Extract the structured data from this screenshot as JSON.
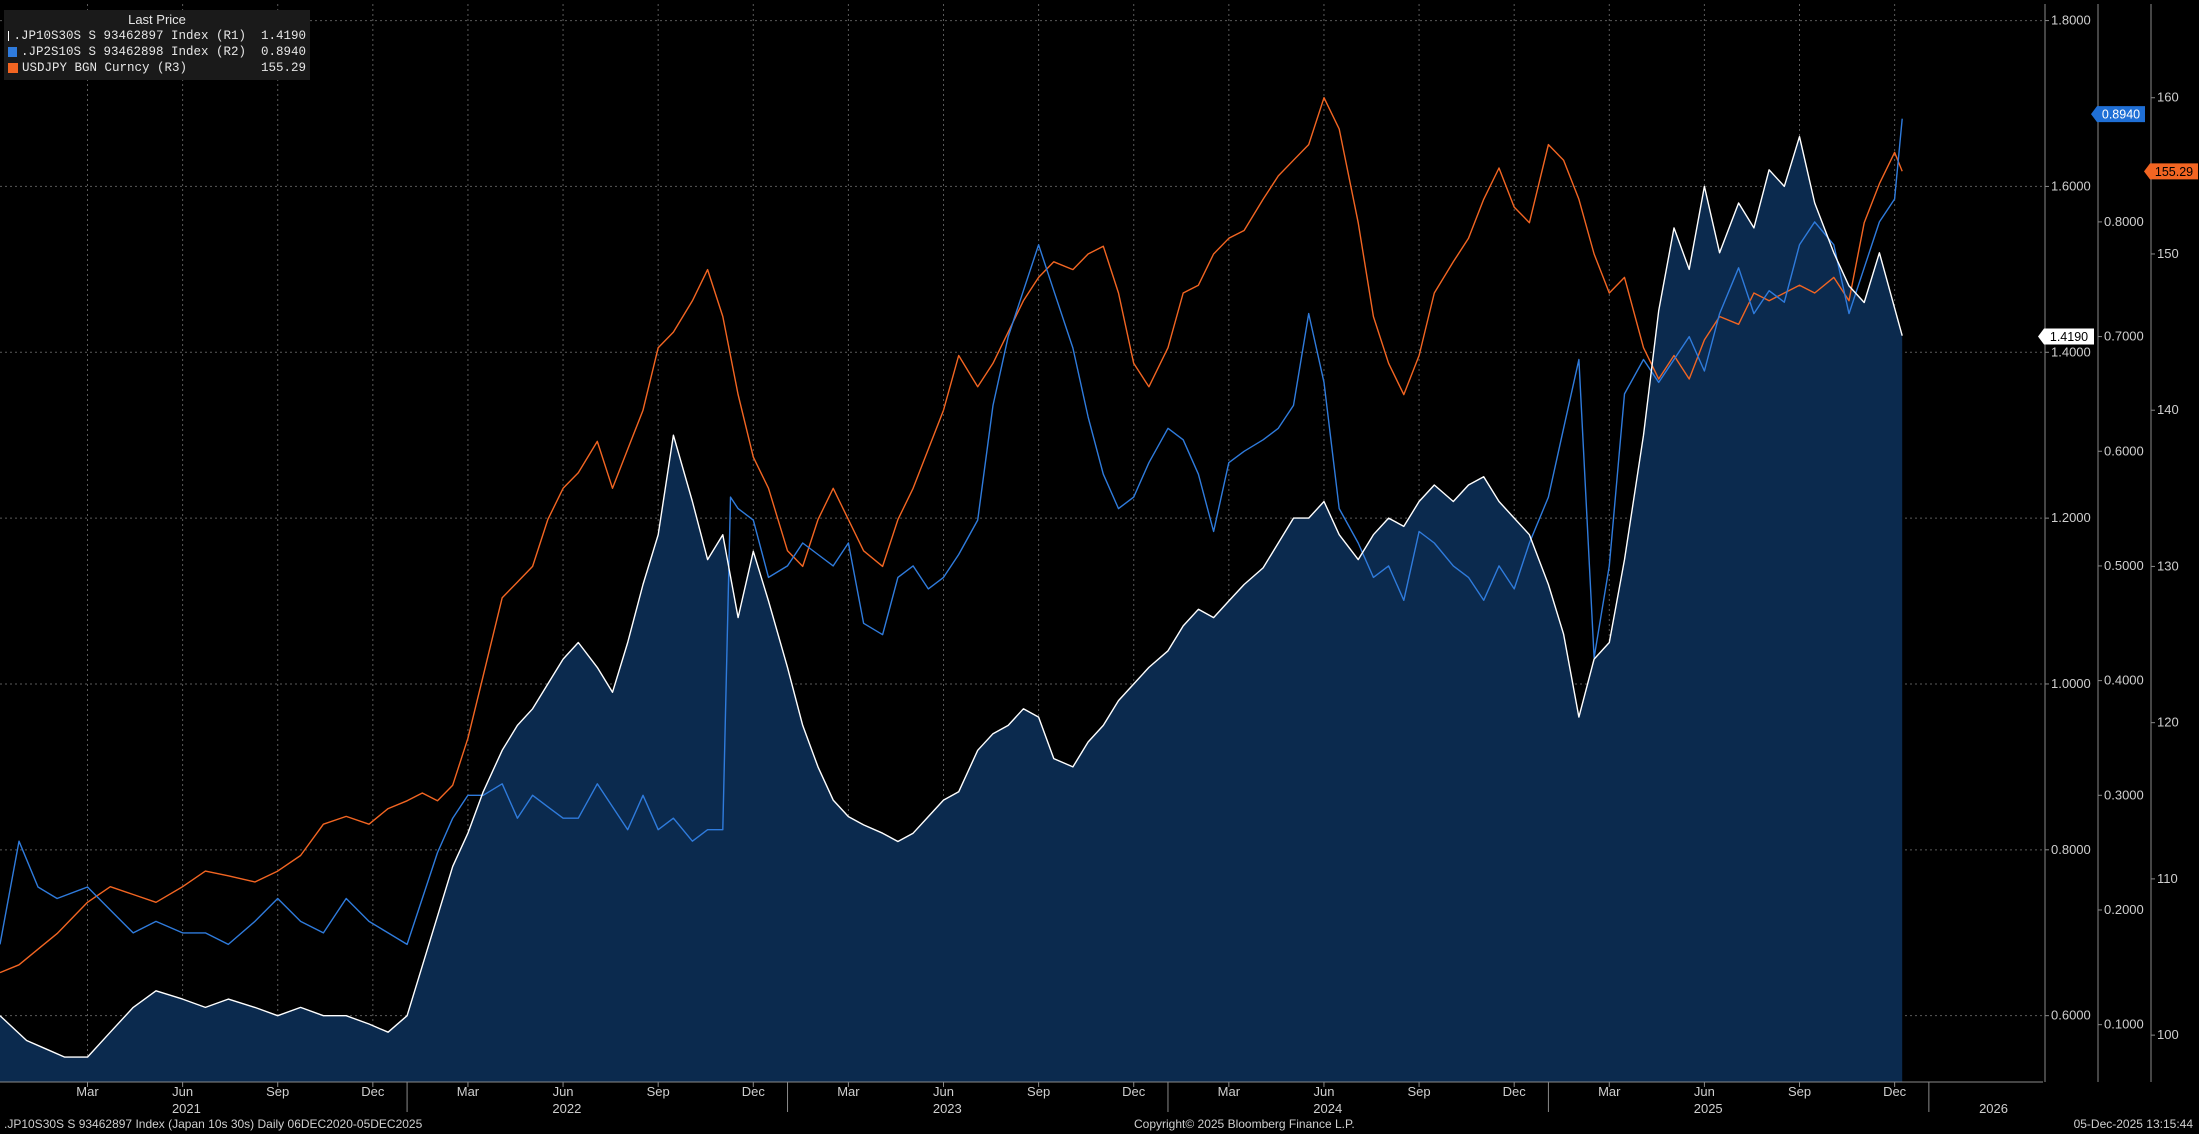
{
  "legend": {
    "title": "Last Price",
    "items": [
      {
        "label": ".JP10S30S S 93462897 Index  (R1)",
        "value": "1.4190",
        "color": "#ffffff"
      },
      {
        "label": ".JP2S10S S 93462898 Index  (R2)",
        "value": "0.8940",
        "color": "#2f7bdc"
      },
      {
        "label": "USDJPY BGN Curncy  (R3)",
        "value": "155.29",
        "color": "#f26522"
      }
    ]
  },
  "footer": {
    "left": ".JP10S30S S 93462897 Index (Japan 10s 30s) Daily 06DEC2020-05DEC2025",
    "center": "Copyright© 2025 Bloomberg Finance L.P.",
    "right": "05-Dec-2025 13:15:44"
  },
  "colors": {
    "background": "#000000",
    "area_fill": "#0b2a4e",
    "r1_line": "#ffffff",
    "r2_line": "#2f7bdc",
    "r3_line": "#f26522",
    "grid": "#5a5a5a"
  },
  "chart_data": {
    "type": "line",
    "title": "Last Price",
    "x_range": [
      2020.93,
      2026.3
    ],
    "month_ticks": [
      {
        "label": "Mar",
        "t": 2021.16
      },
      {
        "label": "Jun",
        "t": 2021.41
      },
      {
        "label": "Sep",
        "t": 2021.66
      },
      {
        "label": "Dec",
        "t": 2021.91
      },
      {
        "label": "Mar",
        "t": 2022.16
      },
      {
        "label": "Jun",
        "t": 2022.41
      },
      {
        "label": "Sep",
        "t": 2022.66
      },
      {
        "label": "Dec",
        "t": 2022.91
      },
      {
        "label": "Mar",
        "t": 2023.16
      },
      {
        "label": "Jun",
        "t": 2023.41
      },
      {
        "label": "Sep",
        "t": 2023.66
      },
      {
        "label": "Dec",
        "t": 2023.91
      },
      {
        "label": "Mar",
        "t": 2024.16
      },
      {
        "label": "Jun",
        "t": 2024.41
      },
      {
        "label": "Sep",
        "t": 2024.66
      },
      {
        "label": "Dec",
        "t": 2024.91
      },
      {
        "label": "Mar",
        "t": 2025.16
      },
      {
        "label": "Jun",
        "t": 2025.41
      },
      {
        "label": "Sep",
        "t": 2025.66
      },
      {
        "label": "Dec",
        "t": 2025.91
      }
    ],
    "year_labels": [
      {
        "label": "2021",
        "t": 2021.42
      },
      {
        "label": "2022",
        "t": 2022.42
      },
      {
        "label": "2023",
        "t": 2023.42
      },
      {
        "label": "2024",
        "t": 2024.42
      },
      {
        "label": "2025",
        "t": 2025.42
      },
      {
        "label": "2026",
        "t": 2026.17
      }
    ],
    "year_boundaries": [
      2022.0,
      2023.0,
      2024.0,
      2025.0,
      2026.0
    ],
    "axes": {
      "R1": {
        "min": 0.52,
        "max": 1.82,
        "ticks": [
          "1.8000",
          "1.6000",
          "1.4000",
          "1.2000",
          "1.0000",
          "0.8000",
          "0.6000"
        ],
        "tick_values": [
          1.8,
          1.6,
          1.4,
          1.2,
          1.0,
          0.8,
          0.6
        ]
      },
      "R2": {
        "min": 0.05,
        "max": 0.99,
        "ticks": [
          "0.8000",
          "0.7000",
          "0.6000",
          "0.5000",
          "0.4000",
          "0.3000",
          "0.2000",
          "0.1000"
        ],
        "tick_values": [
          0.8,
          0.7,
          0.6,
          0.5,
          0.4,
          0.3,
          0.2,
          0.1
        ]
      },
      "R3": {
        "min": 97.0,
        "max": 166.0,
        "ticks": [
          "160",
          "150",
          "140",
          "130",
          "120",
          "110",
          "100"
        ],
        "tick_values": [
          160,
          150,
          140,
          130,
          120,
          110,
          100
        ]
      }
    },
    "last_value_labels": [
      {
        "series": "R2",
        "text": "0.8940",
        "value": 0.894
      },
      {
        "series": "R3",
        "text": "155.29",
        "value": 155.29
      },
      {
        "series": "R1",
        "text": "1.4190",
        "value": 1.419
      }
    ],
    "series": [
      {
        "name": ".JP10S30S S 93462897 Index",
        "axis": "R1",
        "area": true,
        "x": [
          2020.93,
          2021.0,
          2021.05,
          2021.1,
          2021.16,
          2021.22,
          2021.28,
          2021.34,
          2021.41,
          2021.47,
          2021.53,
          2021.6,
          2021.66,
          2021.72,
          2021.78,
          2021.84,
          2021.9,
          2021.95,
          2022.0,
          2022.04,
          2022.08,
          2022.12,
          2022.16,
          2022.2,
          2022.25,
          2022.29,
          2022.33,
          2022.37,
          2022.41,
          2022.45,
          2022.5,
          2022.54,
          2022.58,
          2022.62,
          2022.66,
          2022.7,
          2022.75,
          2022.79,
          2022.83,
          2022.87,
          2022.91,
          2022.95,
          2023.0,
          2023.04,
          2023.08,
          2023.12,
          2023.16,
          2023.2,
          2023.25,
          2023.29,
          2023.33,
          2023.37,
          2023.41,
          2023.45,
          2023.5,
          2023.54,
          2023.58,
          2023.62,
          2023.66,
          2023.7,
          2023.75,
          2023.79,
          2023.83,
          2023.87,
          2023.91,
          2023.95,
          2024.0,
          2024.04,
          2024.08,
          2024.12,
          2024.16,
          2024.2,
          2024.25,
          2024.29,
          2024.33,
          2024.37,
          2024.41,
          2024.45,
          2024.5,
          2024.54,
          2024.58,
          2024.62,
          2024.66,
          2024.7,
          2024.75,
          2024.79,
          2024.83,
          2024.87,
          2024.91,
          2024.95,
          2025.0,
          2025.04,
          2025.08,
          2025.12,
          2025.16,
          2025.2,
          2025.25,
          2025.29,
          2025.33,
          2025.37,
          2025.41,
          2025.45,
          2025.5,
          2025.54,
          2025.58,
          2025.62,
          2025.66,
          2025.7,
          2025.75,
          2025.79,
          2025.83,
          2025.87,
          2025.93
        ],
        "values": [
          0.6,
          0.57,
          0.56,
          0.55,
          0.55,
          0.58,
          0.61,
          0.63,
          0.62,
          0.61,
          0.62,
          0.61,
          0.6,
          0.61,
          0.6,
          0.6,
          0.59,
          0.58,
          0.6,
          0.66,
          0.72,
          0.78,
          0.82,
          0.87,
          0.92,
          0.95,
          0.97,
          1.0,
          1.03,
          1.05,
          1.02,
          0.99,
          1.05,
          1.12,
          1.18,
          1.3,
          1.22,
          1.15,
          1.18,
          1.08,
          1.16,
          1.1,
          1.02,
          0.95,
          0.9,
          0.86,
          0.84,
          0.83,
          0.82,
          0.81,
          0.82,
          0.84,
          0.86,
          0.87,
          0.92,
          0.94,
          0.95,
          0.97,
          0.96,
          0.91,
          0.9,
          0.93,
          0.95,
          0.98,
          1.0,
          1.02,
          1.04,
          1.07,
          1.09,
          1.08,
          1.1,
          1.12,
          1.14,
          1.17,
          1.2,
          1.2,
          1.22,
          1.18,
          1.15,
          1.18,
          1.2,
          1.19,
          1.22,
          1.24,
          1.22,
          1.24,
          1.25,
          1.22,
          1.2,
          1.18,
          1.12,
          1.06,
          0.96,
          1.03,
          1.05,
          1.15,
          1.3,
          1.45,
          1.55,
          1.5,
          1.6,
          1.52,
          1.58,
          1.55,
          1.62,
          1.6,
          1.66,
          1.58,
          1.52,
          1.48,
          1.46,
          1.52,
          1.42
        ]
      },
      {
        "name": ".JP2S10S S 93462898 Index",
        "axis": "R2",
        "area": false,
        "x": [
          2020.93,
          2020.98,
          2021.03,
          2021.08,
          2021.16,
          2021.22,
          2021.28,
          2021.34,
          2021.41,
          2021.47,
          2021.53,
          2021.6,
          2021.66,
          2021.72,
          2021.78,
          2021.84,
          2021.9,
          2021.95,
          2022.0,
          2022.04,
          2022.08,
          2022.12,
          2022.16,
          2022.2,
          2022.25,
          2022.29,
          2022.33,
          2022.37,
          2022.41,
          2022.45,
          2022.5,
          2022.54,
          2022.58,
          2022.62,
          2022.66,
          2022.7,
          2022.75,
          2022.79,
          2022.83,
          2022.85,
          2022.87,
          2022.91,
          2022.95,
          2023.0,
          2023.04,
          2023.08,
          2023.12,
          2023.16,
          2023.2,
          2023.25,
          2023.29,
          2023.33,
          2023.37,
          2023.41,
          2023.45,
          2023.5,
          2023.54,
          2023.58,
          2023.62,
          2023.66,
          2023.7,
          2023.75,
          2023.79,
          2023.83,
          2023.87,
          2023.91,
          2023.95,
          2024.0,
          2024.04,
          2024.08,
          2024.12,
          2024.16,
          2024.2,
          2024.25,
          2024.29,
          2024.33,
          2024.37,
          2024.41,
          2024.45,
          2024.5,
          2024.54,
          2024.58,
          2024.62,
          2024.66,
          2024.7,
          2024.75,
          2024.79,
          2024.83,
          2024.87,
          2024.91,
          2024.95,
          2025.0,
          2025.04,
          2025.08,
          2025.12,
          2025.16,
          2025.2,
          2025.25,
          2025.29,
          2025.33,
          2025.37,
          2025.41,
          2025.45,
          2025.5,
          2025.54,
          2025.58,
          2025.62,
          2025.66,
          2025.7,
          2025.75,
          2025.79,
          2025.83,
          2025.87,
          2025.91,
          2025.93
        ],
        "values": [
          0.17,
          0.26,
          0.22,
          0.21,
          0.22,
          0.2,
          0.18,
          0.19,
          0.18,
          0.18,
          0.17,
          0.19,
          0.21,
          0.19,
          0.18,
          0.21,
          0.19,
          0.18,
          0.17,
          0.21,
          0.25,
          0.28,
          0.3,
          0.3,
          0.31,
          0.28,
          0.3,
          0.29,
          0.28,
          0.28,
          0.31,
          0.29,
          0.27,
          0.3,
          0.27,
          0.28,
          0.26,
          0.27,
          0.27,
          0.56,
          0.55,
          0.54,
          0.49,
          0.5,
          0.52,
          0.51,
          0.5,
          0.52,
          0.45,
          0.44,
          0.49,
          0.5,
          0.48,
          0.49,
          0.51,
          0.54,
          0.64,
          0.7,
          0.74,
          0.78,
          0.74,
          0.69,
          0.63,
          0.58,
          0.55,
          0.56,
          0.59,
          0.62,
          0.61,
          0.58,
          0.53,
          0.59,
          0.6,
          0.61,
          0.62,
          0.64,
          0.72,
          0.66,
          0.55,
          0.52,
          0.49,
          0.5,
          0.47,
          0.53,
          0.52,
          0.5,
          0.49,
          0.47,
          0.5,
          0.48,
          0.52,
          0.56,
          0.62,
          0.68,
          0.42,
          0.5,
          0.65,
          0.68,
          0.66,
          0.68,
          0.7,
          0.67,
          0.72,
          0.76,
          0.72,
          0.74,
          0.73,
          0.78,
          0.8,
          0.78,
          0.72,
          0.76,
          0.8,
          0.82,
          0.89
        ]
      },
      {
        "name": "USDJPY BGN Curncy",
        "axis": "R3",
        "area": false,
        "x": [
          2020.93,
          2020.98,
          2021.03,
          2021.08,
          2021.16,
          2021.22,
          2021.28,
          2021.34,
          2021.41,
          2021.47,
          2021.53,
          2021.6,
          2021.66,
          2021.72,
          2021.78,
          2021.84,
          2021.9,
          2021.95,
          2022.0,
          2022.04,
          2022.08,
          2022.12,
          2022.16,
          2022.2,
          2022.25,
          2022.29,
          2022.33,
          2022.37,
          2022.41,
          2022.45,
          2022.5,
          2022.54,
          2022.58,
          2022.62,
          2022.66,
          2022.7,
          2022.75,
          2022.79,
          2022.83,
          2022.87,
          2022.91,
          2022.95,
          2023.0,
          2023.04,
          2023.08,
          2023.12,
          2023.16,
          2023.2,
          2023.25,
          2023.29,
          2023.33,
          2023.37,
          2023.41,
          2023.45,
          2023.5,
          2023.54,
          2023.58,
          2023.62,
          2023.66,
          2023.7,
          2023.75,
          2023.79,
          2023.83,
          2023.87,
          2023.91,
          2023.95,
          2024.0,
          2024.04,
          2024.08,
          2024.12,
          2024.16,
          2024.2,
          2024.25,
          2024.29,
          2024.33,
          2024.37,
          2024.41,
          2024.45,
          2024.5,
          2024.54,
          2024.58,
          2024.62,
          2024.66,
          2024.7,
          2024.75,
          2024.79,
          2024.83,
          2024.87,
          2024.91,
          2024.95,
          2025.0,
          2025.04,
          2025.08,
          2025.12,
          2025.16,
          2025.2,
          2025.25,
          2025.29,
          2025.33,
          2025.37,
          2025.41,
          2025.45,
          2025.5,
          2025.54,
          2025.58,
          2025.62,
          2025.66,
          2025.7,
          2025.75,
          2025.79,
          2025.83,
          2025.87,
          2025.91,
          2025.93
        ],
        "values": [
          104.0,
          104.5,
          105.5,
          106.5,
          108.5,
          109.5,
          109.0,
          108.5,
          109.5,
          110.5,
          110.2,
          109.8,
          110.5,
          111.5,
          113.5,
          114.0,
          113.5,
          114.5,
          115.0,
          115.5,
          115.0,
          116.0,
          119.0,
          123.0,
          128.0,
          129.0,
          130.0,
          133.0,
          135.0,
          136.0,
          138.0,
          135.0,
          137.5,
          140.0,
          144.0,
          145.0,
          147.0,
          149.0,
          146.0,
          141.0,
          137.0,
          135.0,
          131.0,
          130.0,
          133.0,
          135.0,
          133.0,
          131.0,
          130.0,
          133.0,
          135.0,
          137.5,
          140.0,
          143.5,
          141.5,
          143.0,
          145.0,
          147.0,
          148.5,
          149.5,
          149.0,
          150.0,
          150.5,
          147.5,
          143.0,
          141.5,
          144.0,
          147.5,
          148.0,
          150.0,
          151.0,
          151.5,
          153.5,
          155.0,
          156.0,
          157.0,
          160.0,
          158.0,
          152.0,
          146.0,
          143.0,
          141.0,
          143.5,
          147.5,
          149.5,
          151.0,
          153.5,
          155.5,
          153.0,
          152.0,
          157.0,
          156.0,
          153.5,
          150.0,
          147.5,
          148.5,
          144.0,
          142.0,
          143.5,
          142.0,
          144.5,
          146.0,
          145.5,
          147.5,
          147.0,
          147.5,
          148.0,
          147.5,
          148.5,
          147.0,
          152.0,
          154.5,
          156.5,
          155.29
        ]
      }
    ]
  }
}
